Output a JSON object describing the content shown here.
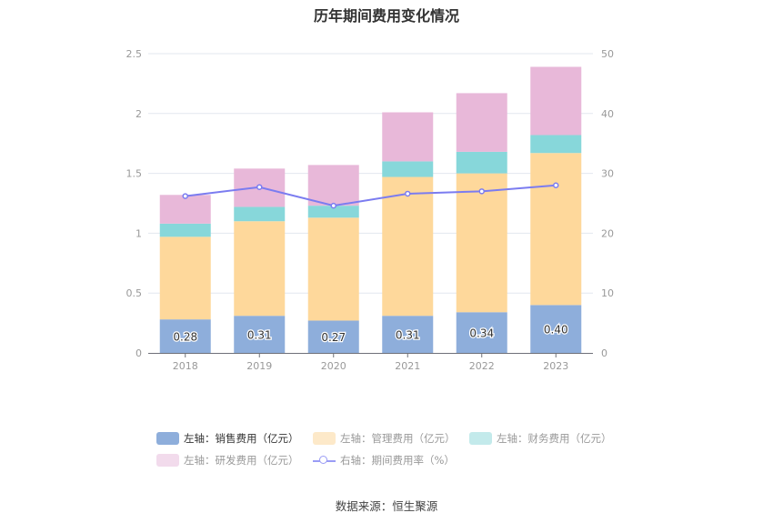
{
  "chart_data": {
    "type": "bar",
    "title": "历年期间费用变化情况",
    "categories": [
      "2018",
      "2019",
      "2020",
      "2021",
      "2022",
      "2023"
    ],
    "stacked": true,
    "series": [
      {
        "name": "左轴：销售费用（亿元）",
        "axis": "left",
        "type": "bar",
        "color": "#8eaedb",
        "values": [
          0.28,
          0.31,
          0.27,
          0.31,
          0.34,
          0.4
        ],
        "labels": [
          "0.28",
          "0.31",
          "0.27",
          "0.31",
          "0.34",
          "0.40"
        ]
      },
      {
        "name": "左轴：管理费用（亿元）",
        "axis": "left",
        "type": "bar",
        "color": "#fed89b",
        "values": [
          0.69,
          0.79,
          0.86,
          1.16,
          1.16,
          1.27
        ]
      },
      {
        "name": "左轴：财务费用（亿元）",
        "axis": "left",
        "type": "bar",
        "color": "#87d7da",
        "values": [
          0.11,
          0.12,
          0.1,
          0.13,
          0.18,
          0.15
        ]
      },
      {
        "name": "左轴：研发费用（亿元）",
        "axis": "left",
        "type": "bar",
        "color": "#e8b8d9",
        "values": [
          0.24,
          0.32,
          0.34,
          0.41,
          0.49,
          0.57
        ]
      },
      {
        "name": "右轴：期间费用率（%）",
        "axis": "right",
        "type": "line",
        "color": "#7b7cf0",
        "values": [
          26.2,
          27.7,
          24.6,
          26.6,
          27.0,
          28.0
        ]
      }
    ],
    "left_axis": {
      "min": 0,
      "max": 2.5,
      "ticks": [
        "0",
        "0.5",
        "1",
        "1.5",
        "2",
        "2.5"
      ]
    },
    "right_axis": {
      "min": 0,
      "max": 50,
      "ticks": [
        "0",
        "10",
        "20",
        "30",
        "40",
        "50"
      ]
    },
    "grid": true,
    "legend_position": "bottom",
    "legend_swatch_colors": [
      "#8eaedb",
      "#fde9c9",
      "#c3eaeb",
      "#f2dbec",
      "#9a9cf5"
    ]
  },
  "source": "数据来源：恒生聚源"
}
